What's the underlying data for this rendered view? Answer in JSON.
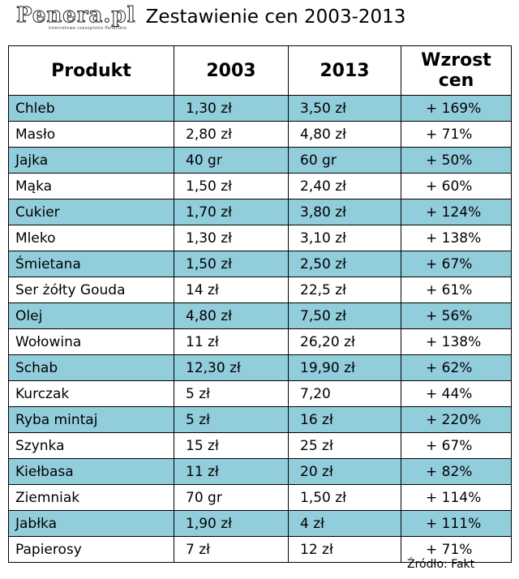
{
  "logo": {
    "text": "Penera.pl",
    "tagline": "Internetowe czasopismo Penerskie"
  },
  "title": "Zestawienie cen 2003-2013",
  "table": {
    "headers": [
      "Produkt",
      "2003",
      "2013",
      "Wzrost cen"
    ],
    "rows": [
      {
        "product": "Chleb",
        "p2003": "1,30 zł",
        "p2013": "3,50 zł",
        "growth": "+ 169%"
      },
      {
        "product": "Masło",
        "p2003": "2,80 zł",
        "p2013": "4,80 zł",
        "growth": "+ 71%"
      },
      {
        "product": "Jajka",
        "p2003": "40 gr",
        "p2013": "60 gr",
        "growth": "+ 50%"
      },
      {
        "product": "Mąka",
        "p2003": "1,50 zł",
        "p2013": "2,40 zł",
        "growth": "+ 60%"
      },
      {
        "product": "Cukier",
        "p2003": "1,70 zł",
        "p2013": "3,80 zł",
        "growth": "+ 124%"
      },
      {
        "product": "Mleko",
        "p2003": "1,30 zł",
        "p2013": "3,10 zł",
        "growth": "+ 138%"
      },
      {
        "product": "Śmietana",
        "p2003": "1,50 zł",
        "p2013": "2,50 zł",
        "growth": "+ 67%"
      },
      {
        "product": "Ser żółty Gouda",
        "p2003": "14 zł",
        "p2013": "22,5 zł",
        "growth": "+ 61%"
      },
      {
        "product": "Olej",
        "p2003": "4,80 zł",
        "p2013": "7,50 zł",
        "growth": "+ 56%"
      },
      {
        "product": "Wołowina",
        "p2003": "11 zł",
        "p2013": "26,20 zł",
        "growth": "+ 138%"
      },
      {
        "product": "Schab",
        "p2003": "12,30 zł",
        "p2013": "19,90 zł",
        "growth": "+ 62%"
      },
      {
        "product": "Kurczak",
        "p2003": "5 zł",
        "p2013": "7,20",
        "growth": "+ 44%"
      },
      {
        "product": "Ryba mintaj",
        "p2003": "5 zł",
        "p2013": "16 zł",
        "growth": "+ 220%"
      },
      {
        "product": "Szynka",
        "p2003": "15 zł",
        "p2013": "25 zł",
        "growth": "+ 67%"
      },
      {
        "product": "Kiełbasa",
        "p2003": "11 zł",
        "p2013": "20 zł",
        "growth": "+ 82%"
      },
      {
        "product": "Ziemniak",
        "p2003": "70 gr",
        "p2013": "1,50 zł",
        "growth": "+ 114%"
      },
      {
        "product": "Jabłka",
        "p2003": "1,90 zł",
        "p2013": "4 zł",
        "growth": "+ 111%"
      },
      {
        "product": "Papierosy",
        "p2003": "7 zł",
        "p2013": "12 zł",
        "growth": "+ 71%"
      }
    ]
  },
  "source": "Źródło: Fakt",
  "colors": {
    "alt_row": "#92cddc",
    "row": "#ffffff"
  }
}
